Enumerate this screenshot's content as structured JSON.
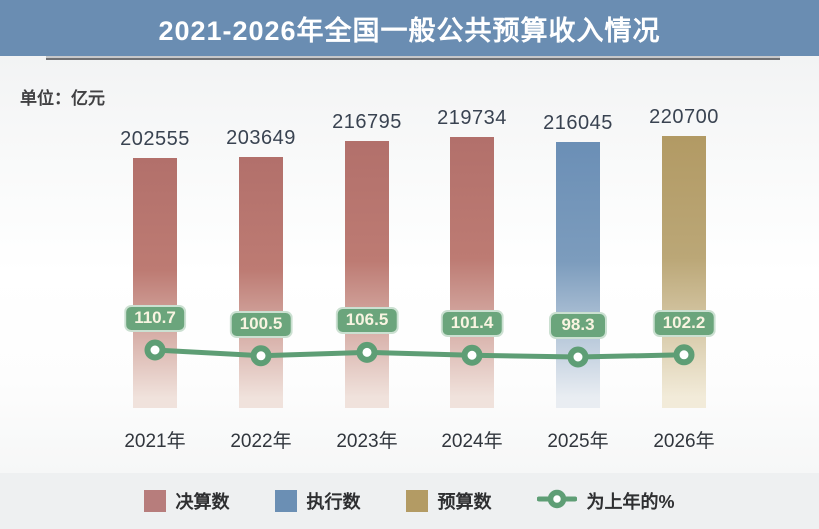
{
  "header": {
    "title": "2021-2026年全国一般公共预算收入情况"
  },
  "unit_label": "单位：亿元",
  "chart_data": {
    "type": "bar+line",
    "title": "2021-2026年全国一般公共预算收入情况",
    "unit": "亿元",
    "categories": [
      "2021年",
      "2022年",
      "2023年",
      "2024年",
      "2025年",
      "2026年"
    ],
    "series": [
      {
        "name": "决算数",
        "type": "bar",
        "values": [
          202555,
          203649,
          216795,
          219734,
          null,
          null
        ]
      },
      {
        "name": "执行数",
        "type": "bar",
        "values": [
          null,
          null,
          null,
          null,
          216045,
          null
        ]
      },
      {
        "name": "预算数",
        "type": "bar",
        "values": [
          null,
          null,
          null,
          null,
          null,
          220700
        ]
      },
      {
        "name": "为上年的%",
        "type": "line",
        "values": [
          110.7,
          100.5,
          106.5,
          101.4,
          98.3,
          102.2
        ]
      }
    ],
    "bar_value_labels": [
      "202555",
      "203649",
      "216795",
      "219734",
      "216045",
      "220700"
    ],
    "pct_labels": [
      "110.7",
      "100.5",
      "106.5",
      "101.4",
      "98.3",
      "102.2"
    ],
    "ylim": [
      0,
      220700
    ],
    "grid": false,
    "legend_position": "bottom"
  },
  "legend": {
    "items": [
      {
        "label": "决算数",
        "kind": "square",
        "color": "#b77d7c"
      },
      {
        "label": "执行数",
        "kind": "square",
        "color": "#6b8fb4"
      },
      {
        "label": "预算数",
        "kind": "square",
        "color": "#b39b64"
      },
      {
        "label": "为上年的%",
        "kind": "line-marker",
        "color": "#5e9e75"
      }
    ]
  },
  "colors": {
    "titlebar_bg": "#6a8db2",
    "bar_gradients": {
      "决算数": [
        "#b2706b",
        "#bd7b73",
        "#f0e2dc"
      ],
      "执行数": [
        "#6b8fb6",
        "#7c9cbd",
        "#e9edf2"
      ],
      "预算数": [
        "#b29a64",
        "#bba777",
        "#f2ebd9"
      ]
    },
    "line_green": "#5e9e75",
    "badge_bg": "#6ba57c",
    "badge_text": "#f8f4e1",
    "axis": "#6f7073"
  }
}
